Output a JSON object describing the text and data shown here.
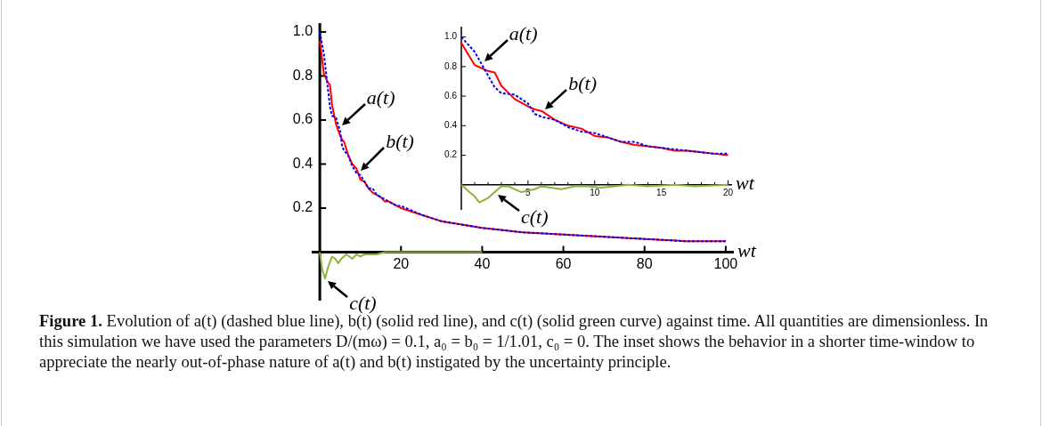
{
  "chart_data": [
    {
      "type": "line",
      "xlabel": "wt",
      "grid": false,
      "legend": false,
      "xlim": [
        -2,
        102
      ],
      "ylim": [
        -0.22,
        1.04
      ],
      "xticks": [
        20,
        40,
        60,
        80,
        100
      ],
      "yticks": [
        0.2,
        0.4,
        0.6,
        0.8,
        {
          "value": 1,
          "label": "1.0"
        }
      ],
      "x": [
        0,
        1,
        1.5,
        2,
        2.5,
        3,
        4,
        5,
        5.5,
        6,
        7,
        8,
        9,
        10,
        11,
        12,
        13,
        14,
        15,
        16,
        17,
        18,
        19,
        20,
        25,
        30,
        40,
        50,
        60,
        70,
        80,
        90,
        100
      ],
      "series": [
        {
          "name": "a(t)",
          "color": "#0000ff",
          "line_style": "dashed",
          "values": [
            1.0,
            0.9,
            0.82,
            0.74,
            0.66,
            0.62,
            0.61,
            0.55,
            0.48,
            0.46,
            0.44,
            0.39,
            0.36,
            0.35,
            0.32,
            0.29,
            0.29,
            0.26,
            0.25,
            0.24,
            0.23,
            0.22,
            0.21,
            0.21,
            0.17,
            0.14,
            0.11,
            0.09,
            0.08,
            0.07,
            0.06,
            0.05,
            0.05
          ]
        },
        {
          "name": "b(t)",
          "color": "#ff0000",
          "line_style": "solid",
          "values": [
            0.96,
            0.81,
            0.79,
            0.77,
            0.76,
            0.67,
            0.58,
            0.53,
            0.51,
            0.5,
            0.44,
            0.4,
            0.38,
            0.33,
            0.32,
            0.29,
            0.27,
            0.26,
            0.25,
            0.23,
            0.23,
            0.22,
            0.21,
            0.2,
            0.17,
            0.14,
            0.11,
            0.09,
            0.08,
            0.07,
            0.06,
            0.05,
            0.05
          ]
        },
        {
          "name": "c(t)",
          "color": "#8db33a",
          "line_style": "solid",
          "x": [
            0,
            0.6,
            1.3,
            2,
            3,
            3.8,
            4.5,
            5.3,
            6.5,
            7.3,
            8,
            9,
            10,
            11,
            12,
            14,
            16,
            18,
            20,
            30,
            40
          ],
          "values": [
            0,
            -0.08,
            -0.12,
            -0.07,
            -0.02,
            -0.03,
            -0.05,
            -0.03,
            -0.01,
            -0.02,
            -0.03,
            -0.01,
            -0.02,
            -0.01,
            -0.01,
            -0.01,
            0,
            0,
            0,
            0,
            0
          ]
        }
      ],
      "annotations": [
        "Figure 1. Evolution of a(t) (dashed blue line), b(t) (solid red line), and c(t) (solid green curve) against time. All quantities are dimensionless. In this simulation we have used the parameters D/(mω) = 0.1, a₀ = b₀ = 1/1.01, c₀ = 0. The inset shows the behavior in a shorter time-window to appreciate the nearly out-of-phase nature of a(t) and b(t) instigated by the uncertainty principle."
      ]
    },
    {
      "type": "line",
      "xlabel": "wt",
      "grid": false,
      "legend": false,
      "xlim": [
        0,
        20.3
      ],
      "ylim": [
        -0.17,
        1.07
      ],
      "xticks": [
        {
          "value": 1,
          "label": null
        },
        {
          "value": 2,
          "label": null
        },
        {
          "value": 3,
          "label": null
        },
        {
          "value": 4,
          "label": null
        },
        5,
        {
          "value": 6,
          "label": null
        },
        {
          "value": 7,
          "label": null
        },
        {
          "value": 8,
          "label": null
        },
        {
          "value": 9,
          "label": null
        },
        10,
        {
          "value": 11,
          "label": null
        },
        {
          "value": 12,
          "label": null
        },
        {
          "value": 13,
          "label": null
        },
        {
          "value": 14,
          "label": null
        },
        15,
        {
          "value": 16,
          "label": null
        },
        {
          "value": 17,
          "label": null
        },
        {
          "value": 18,
          "label": null
        },
        {
          "value": 19,
          "label": null
        },
        20
      ],
      "yticks": [
        0.2,
        0.4,
        0.6,
        0.8,
        {
          "value": 1,
          "label": "1.0"
        }
      ],
      "x": [
        0,
        1,
        1.5,
        2,
        2.5,
        3,
        4,
        5,
        5.5,
        6,
        7,
        8,
        9,
        10,
        11,
        12,
        13,
        14,
        15,
        16,
        17,
        18,
        19,
        20
      ],
      "series": [
        {
          "name": "a(t)",
          "color": "#0000ff",
          "line_style": "dashed",
          "values": [
            1.0,
            0.9,
            0.82,
            0.74,
            0.66,
            0.62,
            0.61,
            0.55,
            0.48,
            0.46,
            0.44,
            0.39,
            0.36,
            0.35,
            0.32,
            0.29,
            0.29,
            0.26,
            0.25,
            0.24,
            0.23,
            0.22,
            0.21,
            0.21
          ]
        },
        {
          "name": "b(t)",
          "color": "#ff0000",
          "line_style": "solid",
          "values": [
            0.96,
            0.81,
            0.79,
            0.77,
            0.76,
            0.67,
            0.58,
            0.53,
            0.51,
            0.5,
            0.44,
            0.4,
            0.38,
            0.33,
            0.32,
            0.29,
            0.27,
            0.26,
            0.25,
            0.23,
            0.23,
            0.22,
            0.21,
            0.2
          ]
        },
        {
          "name": "c(t)",
          "color": "#8db33a",
          "line_style": "solid",
          "x": [
            0,
            0.5,
            1,
            1.35,
            2,
            2.5,
            3,
            3.5,
            4.5,
            5.5,
            6,
            7.5,
            8.5,
            9.5,
            10.5,
            11.5,
            12.5,
            14,
            16,
            17.5,
            20
          ],
          "values": [
            0,
            -0.04,
            -0.08,
            -0.12,
            -0.09,
            -0.05,
            -0.01,
            -0.01,
            -0.05,
            -0.03,
            -0.01,
            -0.03,
            -0.01,
            -0.01,
            -0.02,
            -0.01,
            0,
            -0.01,
            0,
            -0.01,
            0
          ]
        }
      ]
    }
  ]
}
